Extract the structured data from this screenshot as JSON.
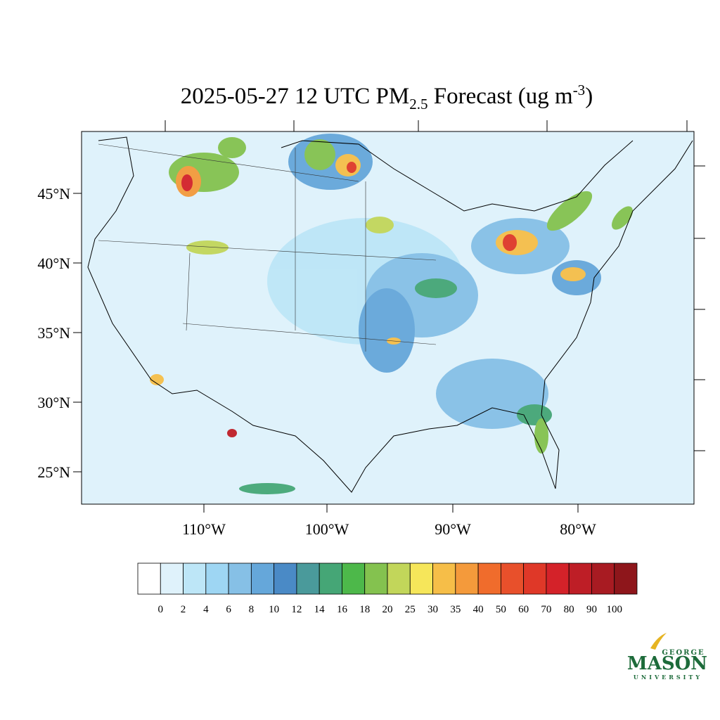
{
  "header": {
    "title": {
      "main": "2025-05-27 12 UTC PM",
      "sub": "2.5",
      "middle": " Forecast (ug m",
      "sup": "-3",
      "end": ")"
    }
  },
  "map": {
    "lat_labels": [
      "45°N",
      "40°N",
      "35°N",
      "30°N",
      "25°N"
    ],
    "lon_labels": [
      "110°W",
      "100°W",
      "90°W",
      "80°W"
    ]
  },
  "colorbar": {
    "labels": [
      "0",
      "2",
      "4",
      "6",
      "8",
      "10",
      "12",
      "14",
      "16",
      "18",
      "20",
      "25",
      "30",
      "35",
      "40",
      "50",
      "60",
      "70",
      "80",
      "90",
      "100"
    ],
    "colors": [
      "#ffffff",
      "#dff2fb",
      "#bde6f7",
      "#9ed6f3",
      "#86c0e6",
      "#65a7da",
      "#4a8ac6",
      "#4a9a9b",
      "#45a676",
      "#4db84a",
      "#84c24f",
      "#c2d65a",
      "#f6e65a",
      "#f6be48",
      "#f49a3b",
      "#f06c2c",
      "#e8502b",
      "#df3828",
      "#d42229",
      "#be1e26",
      "#a81b22",
      "#8e161b"
    ]
  },
  "logo": {
    "top": "GEORGE",
    "main": "MASON",
    "bottom": "UNIVERSITY"
  }
}
